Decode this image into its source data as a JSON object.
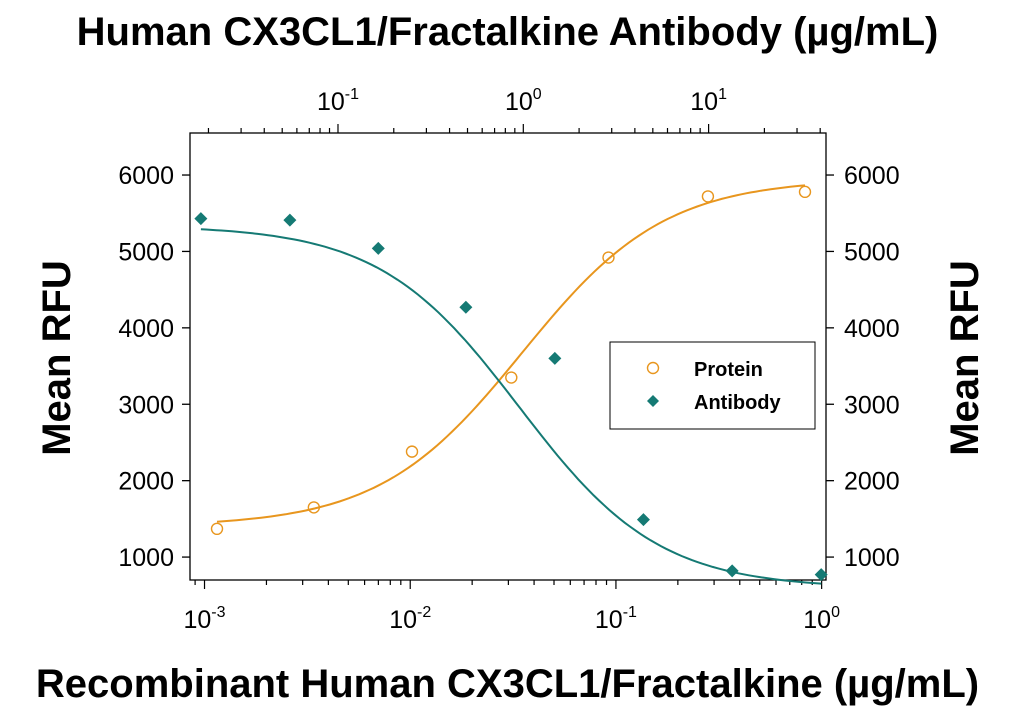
{
  "titles": {
    "top": "Human CX3CL1/Fractalkine Antibody (µg/mL)",
    "bottom": "Recombinant Human CX3CL1/Fractalkine (µg/mL)"
  },
  "colors": {
    "protein": "#E8961E",
    "antibody": "#157A74",
    "axis": "#000000"
  },
  "chart_data": {
    "type": "scatter",
    "title": "",
    "xlabel_bottom": "Recombinant Human CX3CL1/Fractalkine (µg/mL)",
    "xlabel_top": "Human CX3CL1/Fractalkine Antibody (µg/mL)",
    "ylabel_left": "Mean RFU",
    "ylabel_right": "Mean RFU",
    "x_bottom_scale": "log",
    "x_top_scale": "log",
    "x_bottom_lim": [
      0.00085,
      1.05
    ],
    "x_top_lim": [
      0.0159,
      43.0
    ],
    "ylim": [
      700,
      6550
    ],
    "y_ticks": [
      1000,
      2000,
      3000,
      4000,
      5000,
      6000
    ],
    "y_tick_labels": [
      "1000",
      "2000",
      "3000",
      "4000",
      "5000",
      "6000"
    ],
    "x_bottom_ticks": [
      {
        "base": "10",
        "exp": "-3",
        "value": 0.001
      },
      {
        "base": "10",
        "exp": "-2",
        "value": 0.01
      },
      {
        "base": "10",
        "exp": "-1",
        "value": 0.1
      },
      {
        "base": "10",
        "exp": "0",
        "value": 1
      }
    ],
    "x_top_ticks": [
      {
        "base": "10",
        "exp": "-1",
        "value": 0.1
      },
      {
        "base": "10",
        "exp": "0",
        "value": 1
      },
      {
        "base": "10",
        "exp": "1",
        "value": 10
      }
    ],
    "grid": false,
    "legend_position": "center-right",
    "series": [
      {
        "name": "Protein",
        "axis": "bottom",
        "marker": "open-circle",
        "color": "#E8961E",
        "points": [
          [
            0.00115,
            1370
          ],
          [
            0.0034,
            1650
          ],
          [
            0.0102,
            2380
          ],
          [
            0.031,
            3350
          ],
          [
            0.092,
            4920
          ],
          [
            0.28,
            5720
          ],
          [
            0.83,
            5780
          ]
        ],
        "fit": {
          "bottom": 1400,
          "top": 5950,
          "ec50": 0.035,
          "hill": 1.25
        }
      },
      {
        "name": "Antibody",
        "axis": "top",
        "marker": "filled-diamond",
        "color": "#157A74",
        "points": [
          [
            0.0182,
            5430
          ],
          [
            0.055,
            5410
          ],
          [
            0.165,
            5040
          ],
          [
            0.49,
            4270
          ],
          [
            1.48,
            3600
          ],
          [
            4.45,
            1490
          ],
          [
            13.4,
            820
          ],
          [
            40.5,
            770
          ]
        ],
        "fit": {
          "bottom": 590,
          "top": 5340,
          "ec50": 0.95,
          "hill": 1.15
        }
      }
    ]
  }
}
